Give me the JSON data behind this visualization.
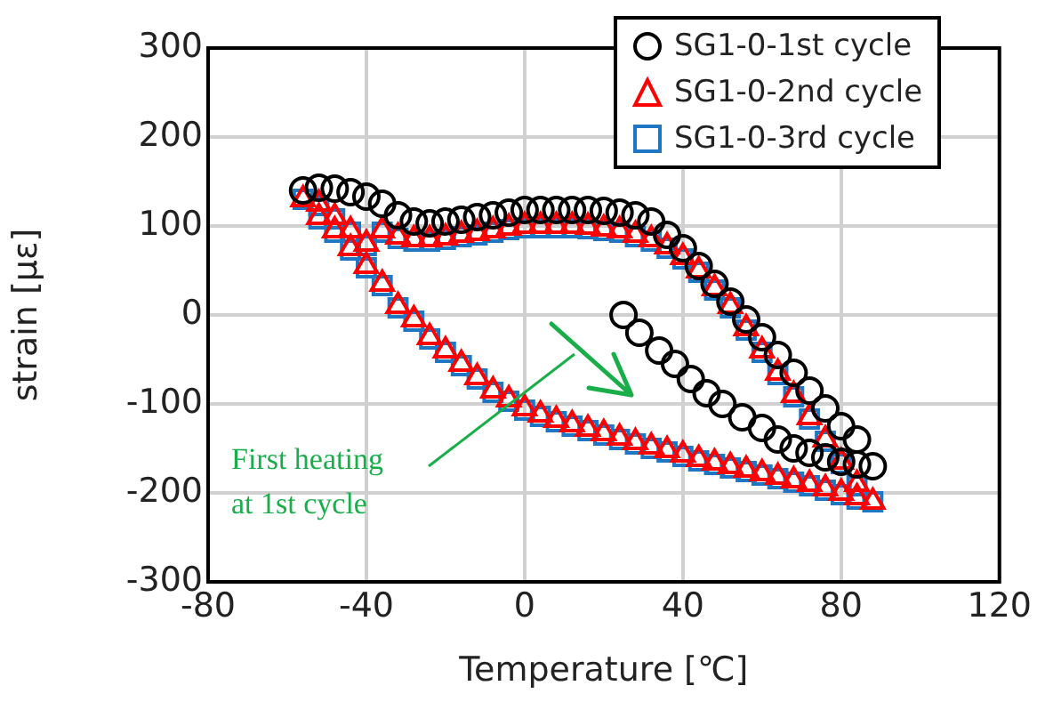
{
  "chart_data": {
    "type": "scatter",
    "xlabel": "Temperature [℃]",
    "ylabel": "strain [με]",
    "xlim": [
      -80,
      120
    ],
    "xticks": [
      -80,
      -40,
      0,
      40,
      80,
      120
    ],
    "ylim": [
      -300,
      300
    ],
    "yticks": [
      -300,
      -200,
      -100,
      0,
      100,
      200,
      300
    ],
    "grid": true,
    "legend": "top right",
    "annotations": [
      "First heating\nat 1st cycle"
    ],
    "series": [
      {
        "name": "SG1-0-1st cycle",
        "color": "#000000",
        "marker": "circle",
        "x": [
          25,
          29,
          34,
          38,
          42,
          46,
          50,
          55,
          60,
          64,
          68,
          72,
          76,
          80,
          84,
          88,
          84,
          80,
          76,
          72,
          68,
          64,
          60,
          56,
          52,
          48,
          44,
          40,
          36,
          32,
          28,
          24,
          20,
          16,
          12,
          8,
          4,
          0,
          -4,
          -8,
          -12,
          -16,
          -20,
          -24,
          -28,
          -32,
          -36,
          -40,
          -44,
          -48,
          -52,
          -56
        ],
        "values": [
          0,
          -20,
          -40,
          -55,
          -72,
          -88,
          -100,
          -115,
          -127,
          -140,
          -150,
          -155,
          -160,
          -165,
          -168,
          -170,
          -140,
          -125,
          -105,
          -85,
          -65,
          -45,
          -25,
          -5,
          15,
          35,
          55,
          75,
          90,
          105,
          112,
          115,
          117,
          118,
          118,
          118,
          118,
          118,
          115,
          112,
          110,
          107,
          105,
          103,
          105,
          112,
          125,
          133,
          138,
          142,
          143,
          140
        ]
      },
      {
        "name": "SG1-0-2nd cycle",
        "color": "#ff0000",
        "marker": "triangle",
        "x": [
          -56,
          -52,
          -48,
          -44,
          -40,
          -36,
          -32,
          -28,
          -24,
          -20,
          -16,
          -12,
          -8,
          -4,
          0,
          4,
          8,
          12,
          16,
          20,
          24,
          28,
          32,
          36,
          40,
          44,
          48,
          52,
          56,
          60,
          64,
          68,
          72,
          76,
          80,
          84,
          88,
          84,
          80,
          76,
          72,
          68,
          64,
          60,
          56,
          52,
          48,
          44,
          40,
          36,
          32,
          28,
          24,
          20,
          16,
          12,
          8,
          4,
          0,
          -4,
          -8,
          -12,
          -16,
          -20,
          -24,
          -28,
          -32,
          -36,
          -40,
          -44,
          -48,
          -52
        ],
        "values": [
          130,
          110,
          95,
          75,
          55,
          35,
          10,
          -5,
          -25,
          -40,
          -55,
          -70,
          -85,
          -95,
          -105,
          -112,
          -118,
          -123,
          -128,
          -133,
          -138,
          -143,
          -148,
          -152,
          -157,
          -162,
          -166,
          -170,
          -174,
          -178,
          -182,
          -186,
          -190,
          -195,
          -200,
          -205,
          -210,
          -190,
          -165,
          -140,
          -115,
          -90,
          -65,
          -40,
          -15,
          10,
          30,
          50,
          65,
          77,
          85,
          90,
          95,
          97,
          99,
          100,
          100,
          100,
          100,
          98,
          95,
          92,
          90,
          87,
          85,
          85,
          88,
          95,
          80,
          95,
          110,
          125
        ]
      },
      {
        "name": "SG1-0-3rd cycle",
        "color": "#1f77c4",
        "marker": "square",
        "x": [
          -56,
          -52,
          -48,
          -44,
          -40,
          -36,
          -32,
          -28,
          -24,
          -20,
          -16,
          -12,
          -8,
          -4,
          0,
          4,
          8,
          12,
          16,
          20,
          24,
          28,
          32,
          36,
          40,
          44,
          48,
          52,
          56,
          60,
          64,
          68,
          72,
          76,
          80,
          84,
          88,
          84,
          80,
          76,
          72,
          68,
          64,
          60,
          56,
          52,
          48,
          44,
          40,
          36,
          32,
          28,
          24,
          20,
          16,
          12,
          8,
          4,
          0,
          -4,
          -8,
          -12,
          -16,
          -20,
          -24,
          -28,
          -32,
          -36,
          -40,
          -44,
          -48,
          -52
        ],
        "values": [
          130,
          108,
          93,
          73,
          53,
          33,
          8,
          -7,
          -27,
          -42,
          -57,
          -72,
          -87,
          -97,
          -107,
          -114,
          -120,
          -125,
          -130,
          -135,
          -140,
          -145,
          -150,
          -154,
          -159,
          -164,
          -168,
          -172,
          -176,
          -180,
          -184,
          -188,
          -192,
          -197,
          -202,
          -207,
          -210,
          -192,
          -167,
          -142,
          -117,
          -92,
          -67,
          -42,
          -17,
          8,
          28,
          48,
          63,
          75,
          83,
          88,
          93,
          95,
          97,
          98,
          98,
          98,
          98,
          96,
          93,
          90,
          88,
          85,
          83,
          83,
          86,
          93,
          78,
          93,
          108,
          123
        ]
      }
    ]
  }
}
